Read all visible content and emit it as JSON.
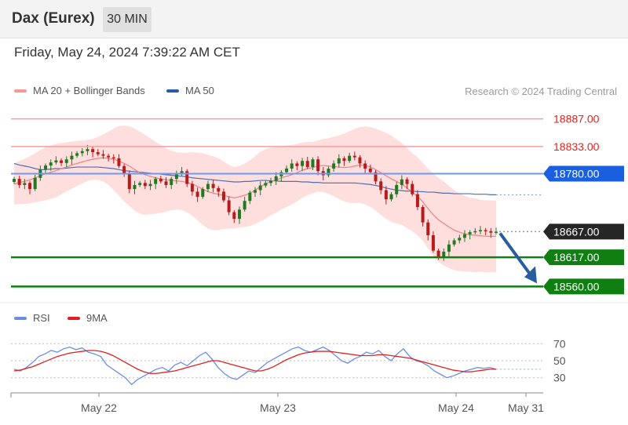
{
  "header": {
    "title": "Dax (Eurex)",
    "interval": "30 MIN"
  },
  "timestamp": "Friday, May 24, 2024 7:39:22 AM CET",
  "legend": {
    "ma20": "MA 20 + Bollinger Bands",
    "ma50": "MA 50",
    "copyright": "Research © 2024 Trading Central"
  },
  "rsi_legend": {
    "rsi": "RSI",
    "ma9": "9MA"
  },
  "colors": {
    "resistance": "#e8201a",
    "support": "#0f7f12",
    "current": "#262626",
    "ma50": "#1a5fe0",
    "bollinger": "#ffd3d3",
    "ma20": "#f08080",
    "up": "#217a22",
    "down": "#b71c1c",
    "arrow": "#2a5d9f"
  },
  "chart_data": {
    "type": "candlestick",
    "instrument": "Dax (Eurex)",
    "interval": "30 MIN",
    "x_ticks": [
      "May 22",
      "May 23",
      "May 24",
      "May 31"
    ],
    "levels": [
      {
        "label": "18887.00",
        "kind": "resistance",
        "value": 18887
      },
      {
        "label": "18833.00",
        "kind": "resistance",
        "value": 18833
      },
      {
        "label": "18780.00",
        "kind": "ma50",
        "value": 18780
      },
      {
        "label": "18667.00",
        "kind": "current",
        "value": 18667
      },
      {
        "label": "18617.00",
        "kind": "support",
        "value": 18617
      },
      {
        "label": "18560.00",
        "kind": "support",
        "value": 18560
      }
    ],
    "price_range": [
      18530,
      18920
    ],
    "close": [
      18770,
      18758,
      18762,
      18750,
      18772,
      18788,
      18796,
      18802,
      18806,
      18801,
      18808,
      18815,
      18820,
      18824,
      18828,
      18822,
      18818,
      18815,
      18812,
      18810,
      18795,
      18780,
      18750,
      18758,
      18762,
      18756,
      18760,
      18770,
      18765,
      18758,
      18770,
      18780,
      18785,
      18760,
      18745,
      18735,
      18750,
      18760,
      18752,
      18745,
      18728,
      18705,
      18692,
      18710,
      18727,
      18743,
      18748,
      18757,
      18762,
      18766,
      18775,
      18783,
      18790,
      18800,
      18795,
      18805,
      18793,
      18808,
      18785,
      18777,
      18790,
      18800,
      18810,
      18805,
      18815,
      18812,
      18800,
      18790,
      18783,
      18765,
      18748,
      18730,
      18740,
      18758,
      18769,
      18760,
      18740,
      18715,
      18685,
      18660,
      18630,
      18618,
      18628,
      18642,
      18650,
      18655,
      18662,
      18666,
      18668,
      18670,
      18668,
      18665,
      18667
    ],
    "ma20": [
      18760,
      18763,
      18765,
      18768,
      18772,
      18776,
      18780,
      18783,
      18786,
      18790,
      18793,
      18797,
      18800,
      18803,
      18806,
      18808,
      18810,
      18811,
      18810,
      18808,
      18805,
      18800,
      18795,
      18788,
      18782,
      18778,
      18775,
      18772,
      18770,
      18768,
      18767,
      18766,
      18765,
      18763,
      18760,
      18755,
      18750,
      18745,
      18742,
      18740,
      18738,
      18735,
      18733,
      18735,
      18738,
      18742,
      18748,
      18755,
      18760,
      18765,
      18768,
      18772,
      18775,
      18778,
      18782,
      18787,
      18790,
      18792,
      18795,
      18796,
      18795,
      18794,
      18793,
      18792,
      18793,
      18795,
      18797,
      18796,
      18793,
      18788,
      18782,
      18776,
      18770,
      18765,
      18760,
      18752,
      18744,
      18736,
      18725,
      18712,
      18700,
      18690,
      18683,
      18676,
      18670,
      18666,
      18663,
      18661,
      18660,
      18659,
      18658,
      18658,
      18658
    ],
    "ma50": [
      18800,
      18797,
      18795,
      18793,
      18790,
      18788,
      18788,
      18789,
      18790,
      18790,
      18791,
      18792,
      18793,
      18793,
      18793,
      18793,
      18793,
      18792,
      18791,
      18790,
      18788,
      18786,
      18785,
      18784,
      18783,
      18782,
      18781,
      18780,
      18779,
      18778,
      18777,
      18776,
      18775,
      18774,
      18772,
      18771,
      18770,
      18769,
      18768,
      18767,
      18766,
      18765,
      18764,
      18764,
      18765,
      18765,
      18766,
      18767,
      18767,
      18766,
      18766,
      18765,
      18765,
      18765,
      18765,
      18764,
      18764,
      18763,
      18763,
      18762,
      18762,
      18762,
      18762,
      18762,
      18762,
      18762,
      18761,
      18760,
      18759,
      18757,
      18755,
      18752,
      18750,
      18748,
      18747,
      18746,
      18746,
      18745,
      18745,
      18744,
      18744,
      18743,
      18742,
      18742,
      18741,
      18741,
      18741,
      18741,
      18740,
      18740,
      18740,
      18739,
      18739
    ],
    "bollinger_width": [
      40,
      42,
      44,
      46,
      48,
      50,
      52,
      52,
      52,
      50,
      48,
      46,
      44,
      42,
      40,
      40,
      42,
      46,
      52,
      60,
      68,
      74,
      78,
      80,
      80,
      78,
      74,
      70,
      66,
      62,
      58,
      56,
      56,
      58,
      62,
      66,
      70,
      72,
      72,
      70,
      66,
      62,
      60,
      60,
      62,
      64,
      66,
      68,
      68,
      66,
      64,
      62,
      60,
      58,
      56,
      54,
      52,
      50,
      50,
      52,
      54,
      58,
      62,
      66,
      70,
      72,
      74,
      76,
      78,
      80,
      82,
      84,
      84,
      82,
      80,
      78,
      76,
      76,
      76,
      78,
      80,
      82,
      82,
      80,
      78,
      76,
      74,
      72,
      72,
      70,
      70,
      70,
      70
    ],
    "rsi": {
      "ticks": [
        70,
        50,
        30
      ],
      "range": [
        15,
        85
      ],
      "ref_level": 40,
      "rsi": [
        40,
        38,
        42,
        48,
        55,
        58,
        62,
        60,
        64,
        66,
        63,
        65,
        60,
        58,
        55,
        45,
        40,
        35,
        30,
        22,
        28,
        32,
        36,
        40,
        42,
        38,
        45,
        48,
        44,
        50,
        56,
        60,
        52,
        42,
        35,
        30,
        28,
        33,
        38,
        36,
        42,
        48,
        52,
        56,
        60,
        64,
        66,
        62,
        60,
        63,
        66,
        62,
        56,
        50,
        47,
        52,
        55,
        60,
        58,
        62,
        55,
        50,
        58,
        64,
        55,
        50,
        48,
        44,
        38,
        34,
        30,
        32,
        35,
        38,
        40,
        42,
        41,
        42,
        40
      ],
      "ma9": [
        38,
        39,
        41,
        43,
        46,
        49,
        52,
        55,
        57,
        59,
        60,
        61,
        62,
        62,
        61,
        59,
        56,
        52,
        48,
        44,
        40,
        37,
        35,
        35,
        36,
        37,
        38,
        40,
        42,
        44,
        46,
        48,
        50,
        50,
        48,
        46,
        44,
        42,
        40,
        38,
        38,
        40,
        43,
        47,
        51,
        54,
        57,
        59,
        60,
        61,
        61,
        61,
        60,
        59,
        58,
        57,
        56,
        56,
        56,
        57,
        57,
        56,
        55,
        54,
        53,
        51,
        49,
        47,
        45,
        43,
        41,
        39,
        38,
        37,
        37,
        38,
        39,
        40,
        40
      ]
    }
  }
}
